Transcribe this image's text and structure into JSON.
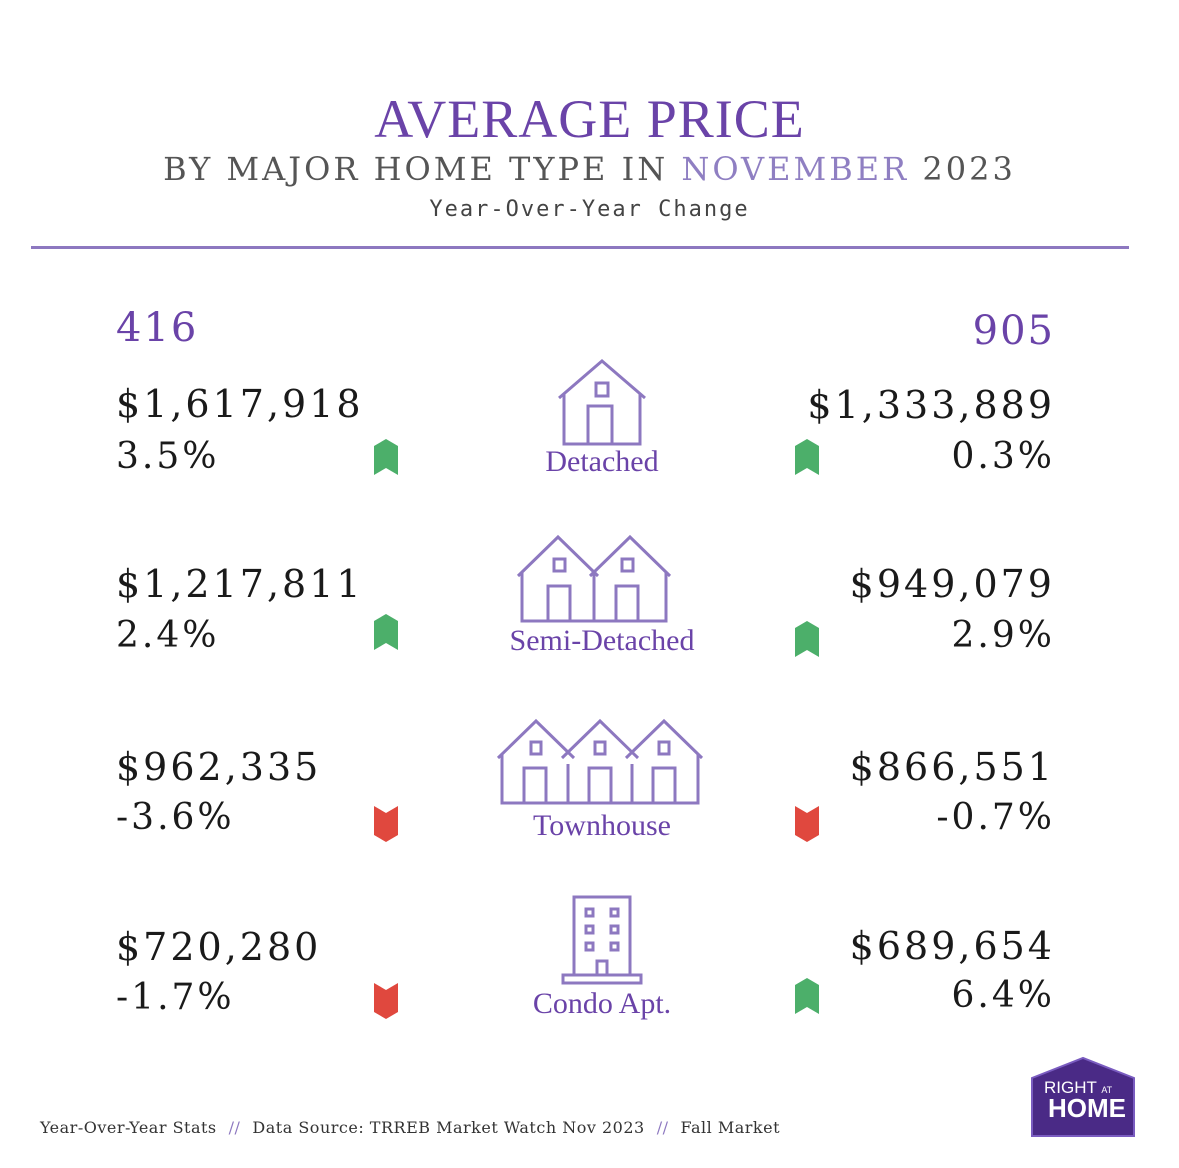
{
  "header": {
    "title": "AVERAGE PRICE",
    "subtitle_pre": "BY MAJOR HOME TYPE IN ",
    "subtitle_month": "NOVEMBER",
    "subtitle_year": " 2023",
    "tagline": "Year-Over-Year Change"
  },
  "regions": {
    "left": "416",
    "right": "905"
  },
  "rows": [
    {
      "label": "Detached",
      "icon": "house-icon",
      "left": {
        "price": "$1,617,918",
        "change": "3.5%",
        "direction": "up"
      },
      "right": {
        "price": "$1,333,889",
        "change": "0.3%",
        "direction": "up"
      }
    },
    {
      "label": "Semi-Detached",
      "icon": "semi-detached-icon",
      "left": {
        "price": "$1,217,811",
        "change": "2.4%",
        "direction": "up"
      },
      "right": {
        "price": "$949,079",
        "change": "2.9%",
        "direction": "up"
      }
    },
    {
      "label": "Townhouse",
      "icon": "townhouse-icon",
      "left": {
        "price": "$962,335",
        "change": "-3.6%",
        "direction": "down"
      },
      "right": {
        "price": "$866,551",
        "change": "-0.7%",
        "direction": "down"
      }
    },
    {
      "label": "Condo Apt.",
      "icon": "condo-building-icon",
      "left": {
        "price": "$720,280",
        "change": "-1.7%",
        "direction": "down"
      },
      "right": {
        "price": "$689,654",
        "change": "6.4%",
        "direction": "up"
      }
    }
  ],
  "footer": {
    "item1": "Year-Over-Year Stats",
    "item2": "Data Source: TRREB Market Watch Nov 2023",
    "item3": "Fall Market",
    "separator": "//"
  },
  "logo": {
    "line1": "RIGHT",
    "at": "AT",
    "line2": "HOME"
  },
  "colors": {
    "accent": "#6a43a8",
    "up": "#4caf6a",
    "down": "#e0483e",
    "rule": "#8d78c0"
  }
}
